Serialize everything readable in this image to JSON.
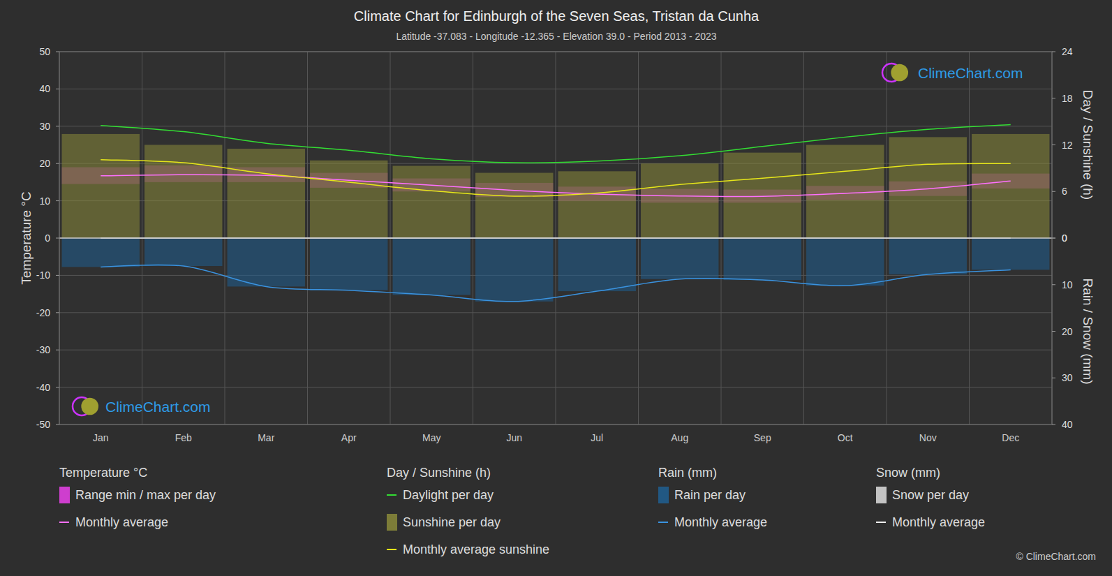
{
  "chart_data": {
    "type": "climate",
    "title": "Climate Chart for Edinburgh of the Seven Seas,  Tristan da Cunha",
    "subtitle": "Latitude -37.083 - Longitude -12.365 - Elevation 39.0 - Period 2013 - 2023",
    "y_label": "Temperature °C",
    "y2_label": "Day / Sunshine (h)",
    "y3_label": "Rain / Snow (mm)",
    "watermark": "ClimeChart.com",
    "copyright": "© ClimeChart.com",
    "grid": true,
    "categories": [
      "Jan",
      "Feb",
      "Mar",
      "Apr",
      "May",
      "Jun",
      "Jul",
      "Aug",
      "Sep",
      "Oct",
      "Nov",
      "Dec"
    ],
    "ylim": [
      -50,
      50
    ],
    "yticks": [
      -50,
      -40,
      -30,
      -20,
      -10,
      0,
      10,
      20,
      30,
      40,
      50
    ],
    "y2lim": [
      -24,
      24
    ],
    "y2ticks": [
      0,
      6,
      12,
      18,
      24
    ],
    "y3lim": [
      40,
      -40
    ],
    "y3ticks": [
      0,
      10,
      20,
      30,
      40
    ],
    "series_groups": [
      {
        "title": "Temperature °C",
        "series": [
          {
            "name": "Range min / max per day",
            "type": "range",
            "color": "#e040e0",
            "values": [
              19,
              19.5,
              19,
              17.5,
              16,
              14.8,
              13.8,
              13.2,
              13,
              14,
              15.2,
              17.3
            ],
            "min": [
              14.5,
              15,
              15,
              13.5,
              12.5,
              11,
              10,
              9.5,
              9.5,
              10.2,
              11.3,
              13.3
            ]
          },
          {
            "name": "Monthly average",
            "type": "line",
            "color": "#ff70ff",
            "values": [
              16.7,
              17.0,
              16.8,
              15.5,
              14.2,
              12.8,
              11.8,
              11.3,
              11.2,
              12.0,
              13.2,
              15.3
            ]
          }
        ]
      },
      {
        "title": "Day / Sunshine (h)",
        "series": [
          {
            "name": "Daylight per day",
            "type": "line",
            "axis": "y2",
            "color": "#33dd33",
            "values": [
              14.5,
              13.7,
              12.2,
              11.3,
              10.2,
              9.7,
              9.9,
              10.6,
              11.8,
              13.0,
              14.0,
              14.6
            ]
          },
          {
            "name": "Sunshine per day",
            "type": "bar",
            "axis": "y2",
            "color": "#8a8a3a",
            "values": [
              13.4,
              12.0,
              11.5,
              10.0,
              9.3,
              8.4,
              8.6,
              9.6,
              11.0,
              12.0,
              13.0,
              13.4
            ]
          },
          {
            "name": "Monthly average sunshine",
            "type": "line",
            "axis": "y2",
            "color": "#e6e61a",
            "values": [
              10.1,
              9.7,
              8.3,
              7.2,
              6.1,
              5.4,
              5.8,
              6.9,
              7.7,
              8.6,
              9.5,
              9.6
            ]
          }
        ]
      },
      {
        "title": "Rain (mm)",
        "series": [
          {
            "name": "Rain per day",
            "type": "bar",
            "axis": "y3",
            "color": "#1f5f92",
            "values": [
              6.2,
              6.0,
              10.4,
              11.2,
              12.2,
              13.6,
              11.4,
              8.8,
              9.0,
              10.2,
              7.8,
              6.8
            ]
          },
          {
            "name": "Monthly average",
            "type": "line",
            "axis": "y3",
            "color": "#3a93e0",
            "values": [
              6.2,
              6.0,
              10.4,
              11.2,
              12.2,
              13.6,
              11.4,
              8.8,
              9.0,
              10.2,
              7.8,
              6.8
            ]
          }
        ]
      },
      {
        "title": "Snow (mm)",
        "series": [
          {
            "name": "Snow per day",
            "type": "bar",
            "axis": "y3",
            "color": "#dddddd",
            "values": [
              0,
              0,
              0,
              0,
              0,
              0,
              0,
              0,
              0,
              0,
              0,
              0
            ]
          },
          {
            "name": "Monthly average",
            "type": "line",
            "axis": "y3",
            "color": "#eeeeee",
            "values": [
              0,
              0,
              0,
              0,
              0,
              0,
              0,
              0,
              0,
              0,
              0,
              0
            ]
          }
        ]
      }
    ]
  }
}
